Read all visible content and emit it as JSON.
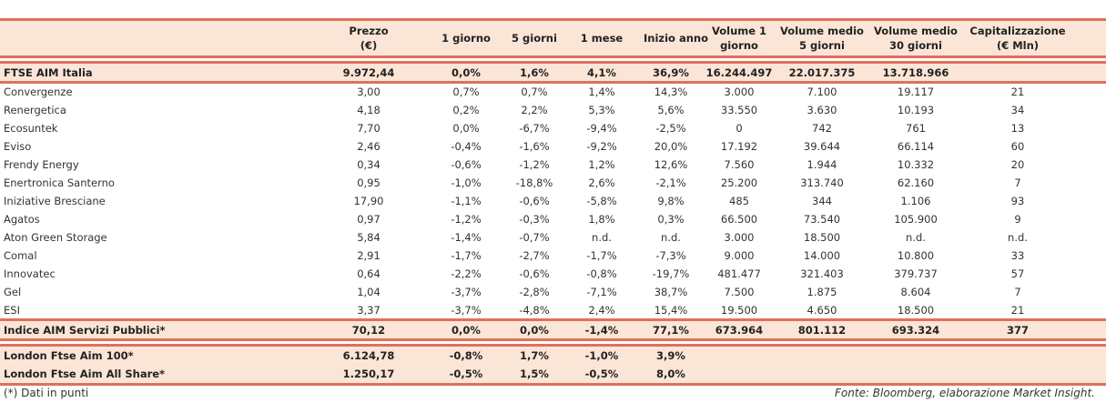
{
  "columns": [
    "",
    "Prezzo\n(€)",
    "1 giorno",
    "5 giorni",
    "1 mese",
    "Inizio anno",
    "Volume 1\ngiorno",
    "Volume medio\n5 giorni",
    "Volume medio\n30 giorni",
    "Capitalizzazione\n(€ Mln)"
  ],
  "headers": {
    "prezzo_1": "Prezzo",
    "prezzo_2": "(€)",
    "g1": "1 giorno",
    "g5": "5 giorni",
    "m1": "1 mese",
    "ytd": "Inizio anno",
    "v1_1": "Volume 1",
    "v1_2": "giorno",
    "v5_1": "Volume medio",
    "v5_2": "5 giorni",
    "v30_1": "Volume medio",
    "v30_2": "30 giorni",
    "cap_1": "Capitalizzazione",
    "cap_2": "(€ Mln)"
  },
  "ftse": [
    "FTSE AIM Italia",
    "9.972,44",
    "0,0%",
    "1,6%",
    "4,1%",
    "36,9%",
    "16.244.497",
    "22.017.375",
    "13.718.966",
    ""
  ],
  "rows": [
    [
      "Convergenze",
      "3,00",
      "0,7%",
      "0,7%",
      "1,4%",
      "14,3%",
      "3.000",
      "7.100",
      "19.117",
      "21"
    ],
    [
      "Renergetica",
      "4,18",
      "0,2%",
      "2,2%",
      "5,3%",
      "5,6%",
      "33.550",
      "3.630",
      "10.193",
      "34"
    ],
    [
      "Ecosuntek",
      "7,70",
      "0,0%",
      "-6,7%",
      "-9,4%",
      "-2,5%",
      "0",
      "742",
      "761",
      "13"
    ],
    [
      "Eviso",
      "2,46",
      "-0,4%",
      "-1,6%",
      "-9,2%",
      "20,0%",
      "17.192",
      "39.644",
      "66.114",
      "60"
    ],
    [
      "Frendy Energy",
      "0,34",
      "-0,6%",
      "-1,2%",
      "1,2%",
      "12,6%",
      "7.560",
      "1.944",
      "10.332",
      "20"
    ],
    [
      "Enertronica Santerno",
      "0,95",
      "-1,0%",
      "-18,8%",
      "2,6%",
      "-2,1%",
      "25.200",
      "313.740",
      "62.160",
      "7"
    ],
    [
      "Iniziative Bresciane",
      "17,90",
      "-1,1%",
      "-0,6%",
      "-5,8%",
      "9,8%",
      "485",
      "344",
      "1.106",
      "93"
    ],
    [
      "Agatos",
      "0,97",
      "-1,2%",
      "-0,3%",
      "1,8%",
      "0,3%",
      "66.500",
      "73.540",
      "105.900",
      "9"
    ],
    [
      "Aton Green Storage",
      "5,84",
      "-1,4%",
      "-0,7%",
      "n.d.",
      "n.d.",
      "3.000",
      "18.500",
      "n.d.",
      "n.d."
    ],
    [
      "Comal",
      "2,91",
      "-1,7%",
      "-2,7%",
      "-1,7%",
      "-7,3%",
      "9.000",
      "14.000",
      "10.800",
      "33"
    ],
    [
      "Innovatec",
      "0,64",
      "-2,2%",
      "-0,6%",
      "-0,8%",
      "-19,7%",
      "481.477",
      "321.403",
      "379.737",
      "57"
    ],
    [
      "Gel",
      "1,04",
      "-3,7%",
      "-2,8%",
      "-7,1%",
      "38,7%",
      "7.500",
      "1.875",
      "8.604",
      "7"
    ],
    [
      "ESI",
      "3,37",
      "-3,7%",
      "-4,8%",
      "2,4%",
      "15,4%",
      "19.500",
      "4.650",
      "18.500",
      "21"
    ]
  ],
  "indice": [
    "Indice AIM Servizi Pubblici*",
    "70,12",
    "0,0%",
    "0,0%",
    "-1,4%",
    "77,1%",
    "673.964",
    "801.112",
    "693.324",
    "377"
  ],
  "london": [
    [
      "London Ftse Aim 100*",
      "6.124,78",
      "-0,8%",
      "1,7%",
      "-1,0%",
      "3,9%",
      "",
      "",
      "",
      ""
    ],
    [
      "London Ftse Aim All Share*",
      "1.250,17",
      "-0,5%",
      "1,5%",
      "-0,5%",
      "8,0%",
      "",
      "",
      "",
      ""
    ]
  ],
  "footnote": "(*) Dati in punti",
  "source": "Fonte: Bloomberg, elaborazione Market Insight.",
  "colors": {
    "band": "#fbe5d6",
    "rule": "#e0705c"
  }
}
